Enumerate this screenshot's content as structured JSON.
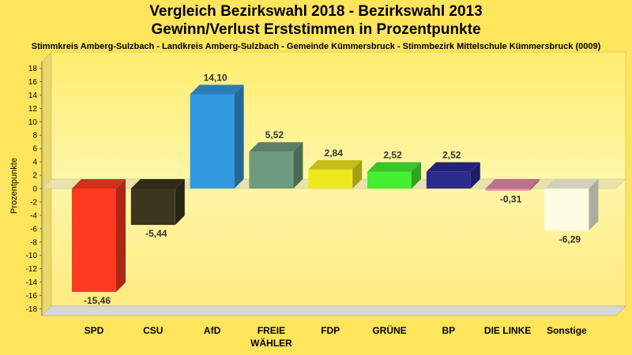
{
  "title_line1": "Vergleich Bezirkswahl 2018 - Bezirkswahl 2013",
  "title_line2": "Gewinn/Verlust Erststimmen in Prozentpunkte",
  "subtitle": "Stimmkreis Amberg-Sulzbach - Landkreis Amberg-Sulzbach - Gemeinde Kümmersbruck - Stimmbezirk Mittelschule Kümmersbruck (0009)",
  "chart_data": {
    "type": "bar",
    "title": "Vergleich Bezirkswahl 2018 - Bezirkswahl 2013 / Gewinn/Verlust Erststimmen in Prozentpunkte",
    "ylabel": "Prozentpunkte",
    "xlabel": "",
    "ylim": [
      -19,
      19
    ],
    "yticks": [
      18,
      16,
      14,
      12,
      10,
      8,
      6,
      4,
      2,
      0,
      -2,
      -4,
      -6,
      -8,
      -10,
      -12,
      -14,
      -16,
      -18
    ],
    "grid": false,
    "categories": [
      {
        "label": "SPD",
        "label2": ""
      },
      {
        "label": "CSU",
        "label2": ""
      },
      {
        "label": "AfD",
        "label2": ""
      },
      {
        "label": "FREIE",
        "label2": "WÄHLER"
      },
      {
        "label": "FDP",
        "label2": ""
      },
      {
        "label": "GRÜNE",
        "label2": ""
      },
      {
        "label": "BP",
        "label2": ""
      },
      {
        "label": "DIE LINKE",
        "label2": ""
      },
      {
        "label": "Sonstige",
        "label2": ""
      }
    ],
    "values": [
      -15.46,
      -5.44,
      14.1,
      5.52,
      2.84,
      2.52,
      2.52,
      -0.31,
      -6.29
    ],
    "value_labels": [
      "-15,46",
      "-5,44",
      "14,10",
      "5,52",
      "2,84",
      "2,52",
      "2,52",
      "-0,31",
      "-6,29"
    ],
    "colors": [
      "#FF3A20",
      "#3C361C",
      "#3399E0",
      "#6E9A80",
      "#F0E81E",
      "#44F030",
      "#2C2C90",
      "#E58AA8",
      "#FFFDE2"
    ]
  }
}
